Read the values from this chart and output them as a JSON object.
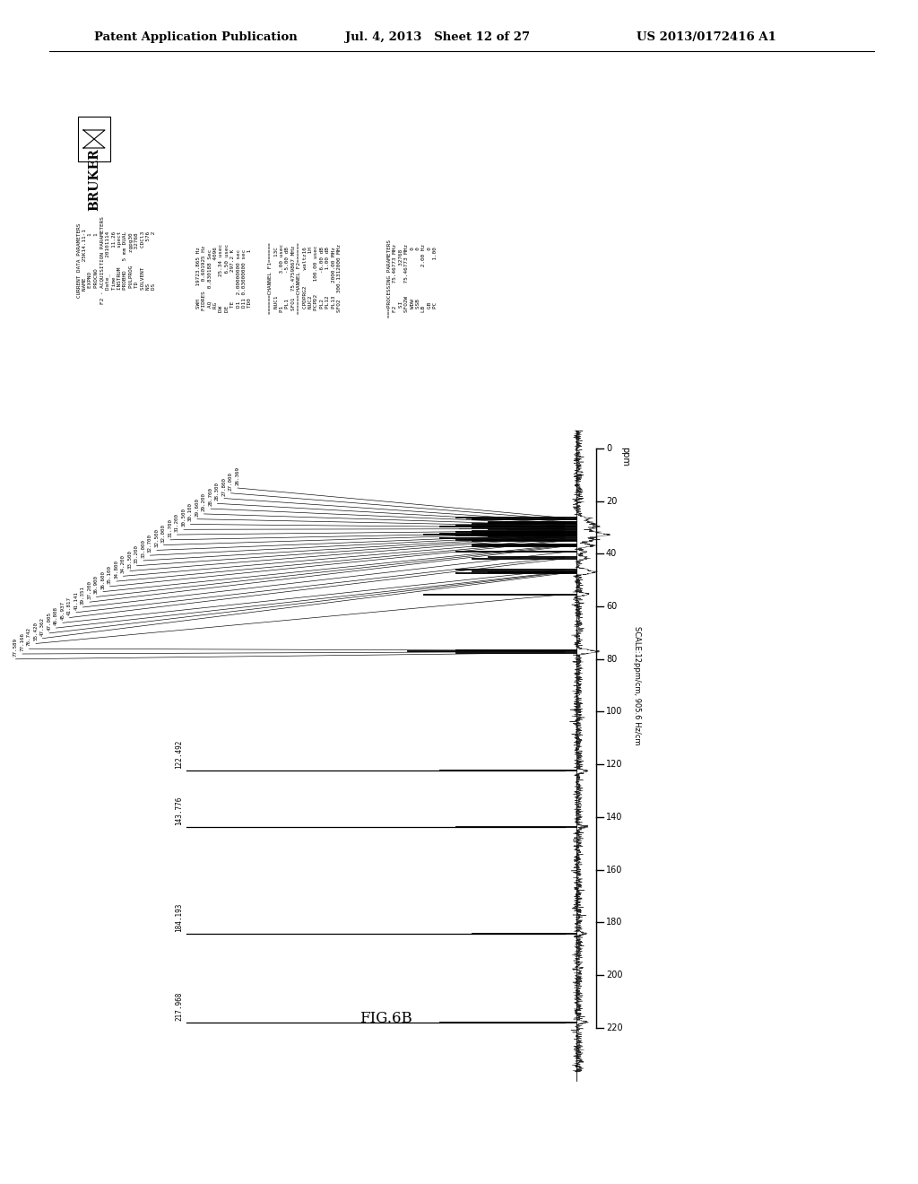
{
  "background_color": "#ffffff",
  "header_left": "Patent Application Publication",
  "header_center": "Jul. 4, 2013   Sheet 12 of 27",
  "header_right": "US 2013/0172416 A1",
  "figure_label": "FIG.6B",
  "axis_ticks": [
    0,
    20,
    40,
    60,
    80,
    100,
    120,
    140,
    160,
    180,
    200,
    220
  ],
  "scale_label": "SCALE:12ppm/cm, 905.6 Hz/cm",
  "ppm_label": "ppm",
  "peak_labels_group1": [
    "26.369",
    "27.000",
    "27.800",
    "28.300",
    "28.700",
    "29.200",
    "29.600",
    "30.100",
    "30.500",
    "31.200",
    "31.700",
    "32.000",
    "32.500",
    "32.700",
    "33.000",
    "33.200",
    "33.500",
    "34.200",
    "34.800",
    "35.100",
    "36.600",
    "36.900",
    "37.200",
    "39.351",
    "41.141",
    "41.817",
    "45.937",
    "46.808",
    "47.005",
    "47.362",
    "55.420",
    "76.742",
    "77.166",
    "77.589"
  ],
  "peak_label_122": "122.492",
  "peak_label_143": "143.776",
  "peak_label_184": "184.193",
  "peak_label_217": "217.968",
  "peaks_ppm": [
    26.369,
    27.0,
    27.8,
    28.3,
    28.7,
    29.2,
    29.6,
    30.1,
    30.5,
    31.2,
    31.7,
    32.0,
    32.5,
    32.7,
    33.0,
    33.2,
    33.5,
    34.2,
    34.8,
    35.1,
    36.6,
    36.9,
    37.2,
    39.351,
    41.141,
    41.817,
    45.937,
    46.808,
    47.005,
    47.362,
    55.42,
    76.742,
    77.166,
    77.589,
    122.492,
    143.776,
    184.193,
    217.968
  ],
  "peaks_intensity": [
    0.7,
    0.6,
    0.5,
    0.5,
    0.6,
    0.7,
    0.8,
    0.6,
    0.5,
    0.6,
    0.7,
    0.6,
    0.8,
    0.9,
    0.6,
    0.7,
    0.5,
    0.8,
    0.7,
    0.6,
    0.6,
    0.5,
    0.6,
    0.7,
    0.5,
    0.6,
    0.7,
    0.6,
    0.5,
    0.7,
    0.9,
    0.7,
    1.0,
    0.7,
    0.8,
    0.7,
    0.6,
    0.8
  ],
  "param_col1": [
    "CURRENT DATA PARAMETERS",
    "NAME     25K14.11-1",
    "EXPNO           1",
    "PROCNO          1",
    "F2 - ACQUISITION PARAMETERS",
    "Date_     20101114",
    "Time         11.26",
    "INSTRUM      spect",
    "PROBHD   5 mm DUAL",
    "PULPROG    zgpg30",
    "TD          32768",
    "SOLVENT      CDCl3",
    "NS             576",
    "DS               2"
  ],
  "param_col2": [
    "SWH    19723.865 Hz",
    "FIDRES   0.601925 Hz",
    "AQ    0.830188 Sec",
    "RG             4096",
    "DW         25.34 usec",
    "DE          6.50 usec",
    "TE         297.2 K",
    "D1  2.00000000 sec",
    "D11 0.03000000 sec",
    "TD0              1"
  ],
  "param_col3": [
    "======CHANNEL F1======",
    "NUC1            13C",
    "P1          3.00 usec",
    "PL1        -5.00 dB",
    "SFO1  75.4759867 MHz",
    "======CHANNEL F2======",
    "CPDPRG2     waltz16",
    "NUC2             1H",
    "PCPD2    100.00 usec",
    "PL2        -6.00 dB",
    "PL12        1.00 dB",
    "PL13    2000.00 MHz",
    "SFO2  300.1312000 MHz"
  ],
  "param_col4": [
    "===PROCESSING PARAMETERS",
    "F2       75.46773 MHz",
    "SI           32768",
    "SFO2W    75.46773 MHz",
    "WDW               0",
    "SSB               0",
    "LB            2.00 Hz",
    "GB                0",
    "PC             1.00"
  ]
}
